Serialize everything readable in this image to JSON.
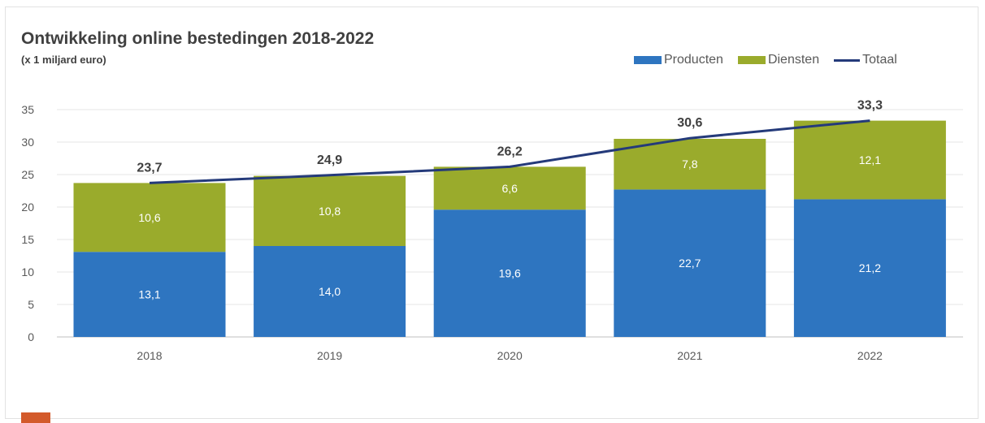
{
  "chart_data": {
    "type": "bar",
    "stacked": true,
    "title": "Ontwikkeling online bestedingen 2018-2022",
    "subtitle": "(x 1 miljard euro)",
    "categories": [
      "2018",
      "2019",
      "2020",
      "2021",
      "2022"
    ],
    "series": [
      {
        "name": "Producten",
        "type": "bar",
        "color": "#2e75c0",
        "values": [
          13.1,
          14.0,
          19.6,
          22.7,
          21.2
        ],
        "labels": [
          "13,1",
          "14,0",
          "19,6",
          "22,7",
          "21,2"
        ]
      },
      {
        "name": "Diensten",
        "type": "bar",
        "color": "#9aab2c",
        "values": [
          10.6,
          10.8,
          6.6,
          7.8,
          12.1
        ],
        "labels": [
          "10,6",
          "10,8",
          "6,6",
          "7,8",
          "12,1"
        ]
      },
      {
        "name": "Totaal",
        "type": "line",
        "color": "#243a7a",
        "values": [
          23.7,
          24.9,
          26.2,
          30.6,
          33.3
        ],
        "labels": [
          "23,7",
          "24,9",
          "26,2",
          "30,6",
          "33,3"
        ]
      }
    ],
    "y_ticks": [
      0,
      5,
      10,
      15,
      20,
      25,
      30,
      35
    ],
    "ylim": [
      0,
      35
    ],
    "xlabel": "",
    "ylabel": "",
    "legend": "top-right",
    "grid": true
  }
}
